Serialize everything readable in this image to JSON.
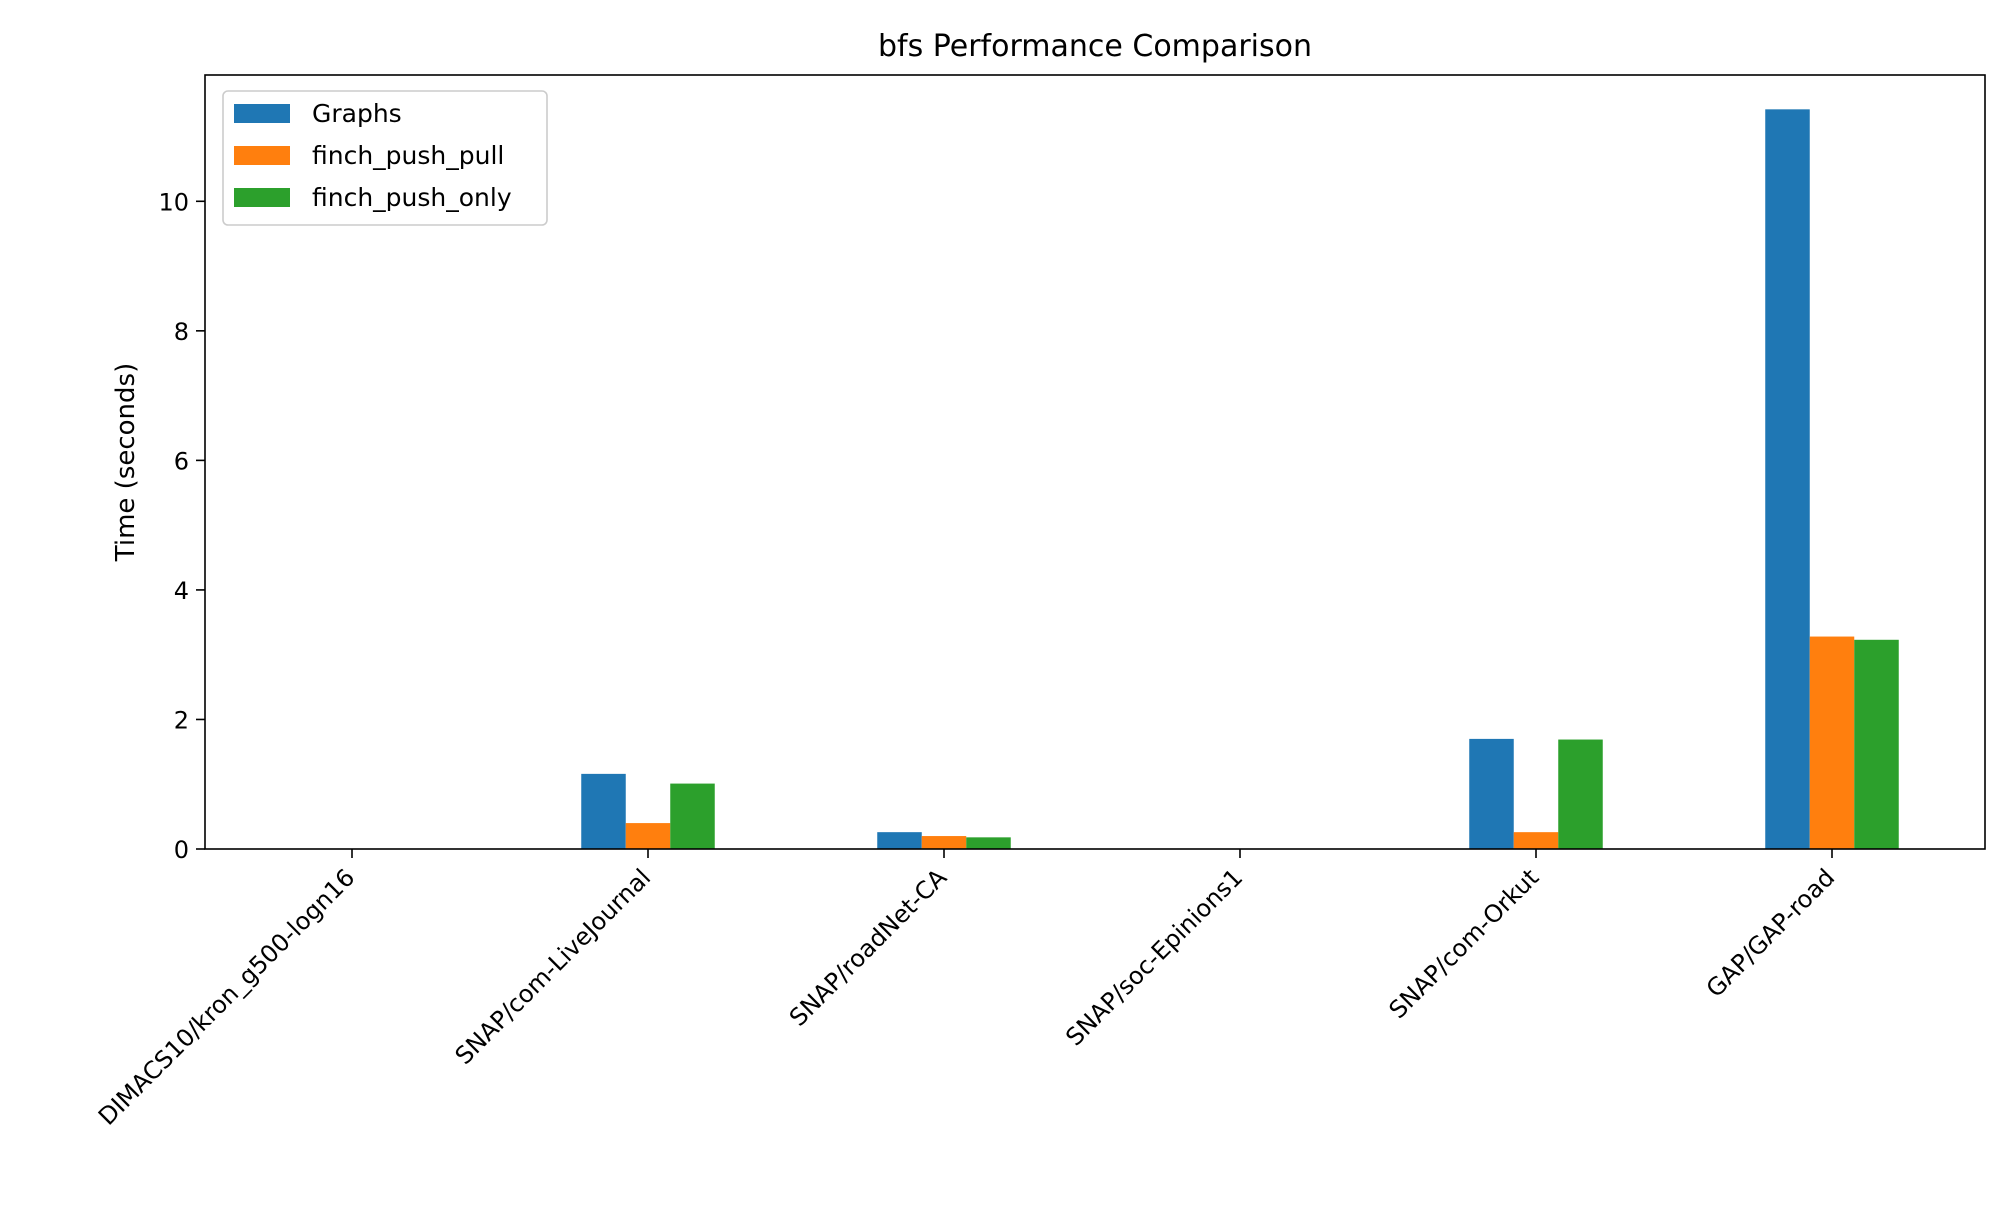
{
  "chart_data": {
    "type": "bar",
    "title": "bfs Performance Comparison",
    "xlabel": "",
    "ylabel": "Time (seconds)",
    "ylim": [
      0,
      11.95
    ],
    "yticks": [
      0,
      2,
      4,
      6,
      8,
      10
    ],
    "categories": [
      "DIMACS10/kron_g500-logn16",
      "SNAP/com-LiveJournal",
      "SNAP/roadNet-CA",
      "SNAP/soc-Epinions1",
      "SNAP/com-Orkut",
      "GAP/GAP-road"
    ],
    "series": [
      {
        "name": "Graphs",
        "color": "#1f77b4",
        "values": [
          0,
          1.16,
          0.26,
          0,
          1.7,
          11.42
        ]
      },
      {
        "name": "finch_push_pull",
        "color": "#ff7f0e",
        "values": [
          0,
          0.4,
          0.2,
          0,
          0.26,
          3.28
        ]
      },
      {
        "name": "finch_push_only",
        "color": "#2ca02c",
        "values": [
          0,
          1.01,
          0.18,
          0,
          1.69,
          3.23
        ]
      }
    ],
    "grid": false,
    "legend_position": "top-left"
  }
}
